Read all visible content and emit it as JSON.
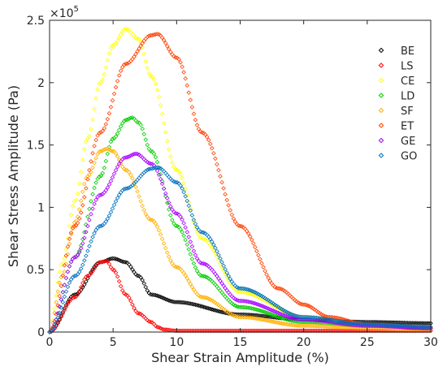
{
  "chart_data": {
    "type": "scatter",
    "xlabel": "Shear Strain Amplitude (%)",
    "ylabel": "Shear Stress Amplitude (Pa)",
    "y_multiplier": "×10",
    "y_multiplier_exp": "5",
    "xlim": [
      0,
      30
    ],
    "ylim": [
      0,
      2.5
    ],
    "x_ticks": [
      0,
      5,
      10,
      15,
      20,
      25,
      30
    ],
    "y_ticks": [
      0,
      0.5,
      1,
      1.5,
      2,
      2.5
    ],
    "x_tick_labels": [
      "0",
      "5",
      "10",
      "15",
      "20",
      "25",
      "30"
    ],
    "y_tick_labels": [
      "0",
      "0.5",
      "1",
      "1.5",
      "2",
      "2.5"
    ],
    "grid": false,
    "legend_position": "top-right",
    "marker": "diamond",
    "series": [
      {
        "name": "BE",
        "color": "#000000",
        "x": [
          0,
          2,
          4,
          5,
          6,
          7,
          8,
          10,
          15,
          20,
          25,
          30
        ],
        "y": [
          0,
          0.3,
          0.56,
          0.59,
          0.56,
          0.45,
          0.3,
          0.24,
          0.14,
          0.1,
          0.08,
          0.07
        ]
      },
      {
        "name": "LS",
        "color": "#ff0000",
        "x": [
          0,
          2,
          3,
          4,
          4.5,
          5,
          6,
          7,
          8,
          8.5,
          9,
          10,
          20,
          30
        ],
        "y": [
          0,
          0.28,
          0.45,
          0.56,
          0.57,
          0.5,
          0.3,
          0.15,
          0.08,
          0.04,
          0.02,
          0.01,
          0.01,
          0.01
        ]
      },
      {
        "name": "CE",
        "color": "#ffff00",
        "x": [
          0,
          1,
          2,
          3,
          4,
          5,
          6,
          7,
          8,
          10,
          12,
          15,
          20,
          25,
          30
        ],
        "y": [
          0,
          0.55,
          1.05,
          1.55,
          2.0,
          2.3,
          2.43,
          2.35,
          2.05,
          1.3,
          0.75,
          0.32,
          0.12,
          0.06,
          0.04
        ]
      },
      {
        "name": "LD",
        "color": "#00cc00",
        "x": [
          0,
          2,
          4,
          5,
          6,
          6.5,
          7,
          8,
          10,
          12,
          15,
          20,
          25,
          30
        ],
        "y": [
          0,
          0.6,
          1.25,
          1.55,
          1.7,
          1.72,
          1.68,
          1.45,
          0.85,
          0.45,
          0.2,
          0.08,
          0.05,
          0.04
        ]
      },
      {
        "name": "SF",
        "color": "#ffb000",
        "x": [
          0,
          1,
          2,
          3,
          4,
          4.5,
          5,
          6,
          8,
          10,
          12,
          15,
          20,
          25,
          30
        ],
        "y": [
          0,
          0.45,
          0.88,
          1.25,
          1.45,
          1.47,
          1.45,
          1.3,
          0.9,
          0.52,
          0.28,
          0.12,
          0.05,
          0.03,
          0.02
        ]
      },
      {
        "name": "ET",
        "color": "#ff4000",
        "x": [
          0,
          2,
          4,
          6,
          8,
          8.5,
          10,
          12,
          15,
          18,
          20,
          22,
          25,
          28,
          30
        ],
        "y": [
          0,
          0.85,
          1.6,
          2.15,
          2.38,
          2.39,
          2.2,
          1.6,
          0.85,
          0.35,
          0.22,
          0.12,
          0.06,
          0.04,
          0.03
        ]
      },
      {
        "name": "GE",
        "color": "#aa00ff",
        "x": [
          0,
          2,
          4,
          6,
          6.8,
          8,
          10,
          12,
          15,
          20,
          25,
          30
        ],
        "y": [
          0,
          0.6,
          1.1,
          1.4,
          1.43,
          1.35,
          0.95,
          0.55,
          0.25,
          0.1,
          0.05,
          0.03
        ]
      },
      {
        "name": "GO",
        "color": "#0070c0",
        "x": [
          0,
          2,
          4,
          6,
          8,
          8.5,
          10,
          12,
          15,
          20,
          25,
          30
        ],
        "y": [
          0,
          0.45,
          0.85,
          1.15,
          1.31,
          1.32,
          1.2,
          0.8,
          0.35,
          0.12,
          0.06,
          0.04
        ]
      }
    ]
  }
}
